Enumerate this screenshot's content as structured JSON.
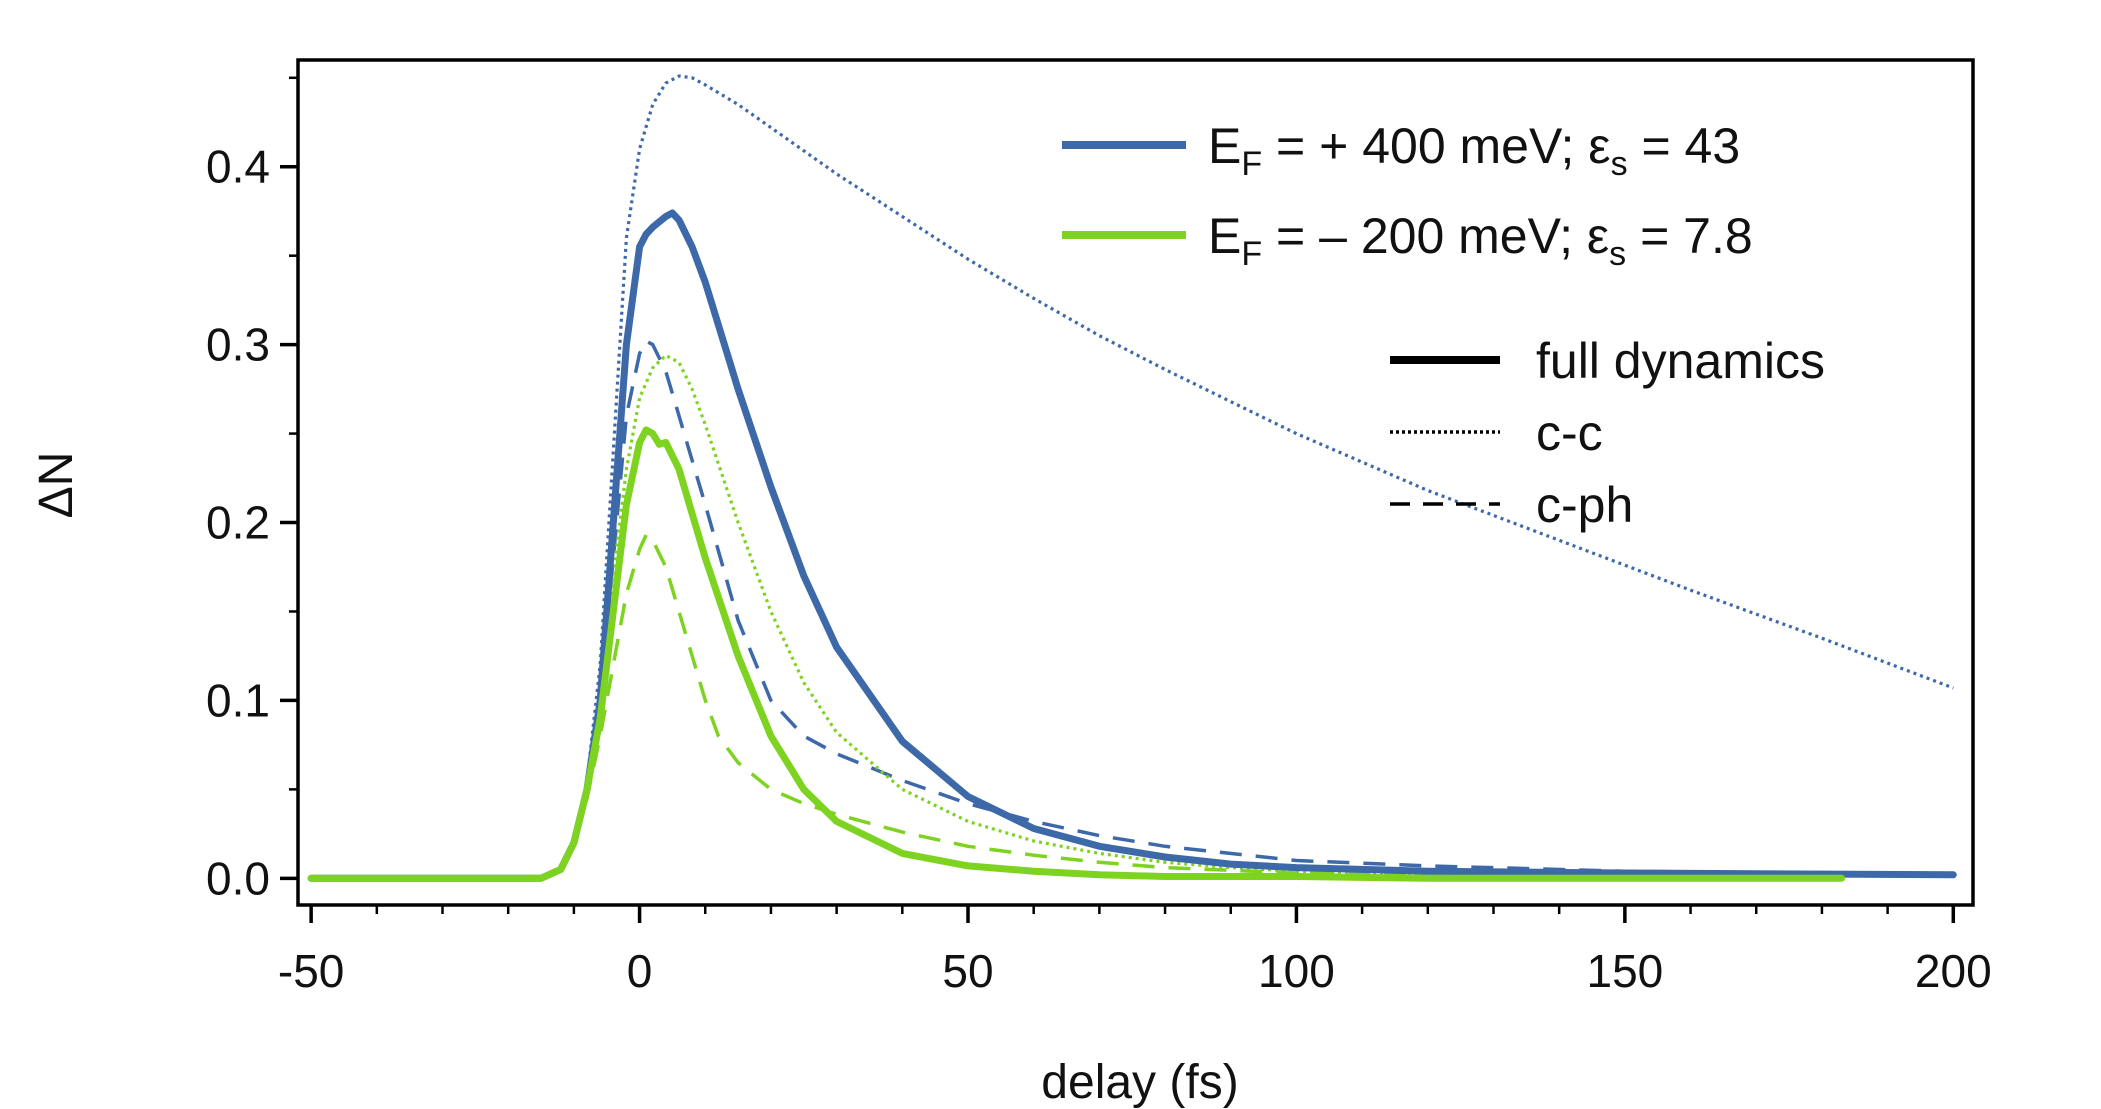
{
  "chart_data": {
    "type": "line",
    "title": "",
    "xlabel": "delay (fs)",
    "ylabel": "ΔN",
    "xlim": [
      -52,
      203
    ],
    "ylim": [
      -0.015,
      0.46
    ],
    "xticks": [
      -50,
      0,
      50,
      100,
      150,
      200
    ],
    "xtick_labels": [
      "-50",
      "0",
      "50",
      "100",
      "150",
      "200"
    ],
    "yticks": [
      0.0,
      0.1,
      0.2,
      0.3,
      0.4
    ],
    "ytick_labels": [
      "0.0",
      "0.1",
      "0.2",
      "0.3",
      "0.4"
    ],
    "grid": false,
    "colors": {
      "blue": "#3d69a9",
      "green": "#7ed321",
      "black": "#000000"
    },
    "legend_case": {
      "position": "top-right",
      "entries": [
        {
          "color_key": "blue",
          "prefix": "E",
          "sub1": "F",
          "middle": " = + 400 meV; ε",
          "sub2": "s",
          "suffix": " = 43"
        },
        {
          "color_key": "green",
          "prefix": "E",
          "sub1": "F",
          "middle": " = – 200 meV; ε",
          "sub2": "s",
          "suffix": " = 7.8"
        }
      ]
    },
    "legend_style": {
      "entries": [
        {
          "label": "full dynamics",
          "style": "solid"
        },
        {
          "label": "c-c",
          "style": "dotted"
        },
        {
          "label": "c-ph",
          "style": "dashed"
        }
      ]
    },
    "series": [
      {
        "name": "E_F = +400 meV full dynamics",
        "color_key": "blue",
        "style": "solid",
        "x": [
          -50,
          -15,
          -12,
          -10,
          -8,
          -6,
          -4,
          -2,
          0,
          1,
          2,
          4,
          5,
          6,
          8,
          10,
          15,
          20,
          25,
          30,
          40,
          50,
          60,
          70,
          80,
          90,
          100,
          120,
          150,
          200
        ],
        "y": [
          0,
          0,
          0.005,
          0.02,
          0.05,
          0.1,
          0.2,
          0.3,
          0.355,
          0.362,
          0.366,
          0.372,
          0.374,
          0.37,
          0.355,
          0.335,
          0.275,
          0.22,
          0.17,
          0.13,
          0.077,
          0.046,
          0.028,
          0.018,
          0.012,
          0.008,
          0.006,
          0.004,
          0.003,
          0.002
        ]
      },
      {
        "name": "E_F = +400 meV c-c",
        "color_key": "blue",
        "style": "dotted",
        "x": [
          -50,
          -15,
          -12,
          -10,
          -8,
          -6,
          -4,
          -2,
          0,
          2,
          4,
          6,
          8,
          10,
          15,
          20,
          30,
          40,
          50,
          60,
          70,
          80,
          90,
          100,
          120,
          140,
          160,
          180,
          200
        ],
        "y": [
          0,
          0,
          0.005,
          0.02,
          0.055,
          0.12,
          0.24,
          0.36,
          0.41,
          0.435,
          0.447,
          0.451,
          0.45,
          0.446,
          0.435,
          0.422,
          0.396,
          0.372,
          0.348,
          0.326,
          0.305,
          0.286,
          0.268,
          0.25,
          0.218,
          0.19,
          0.162,
          0.135,
          0.107
        ]
      },
      {
        "name": "E_F = +400 meV c-ph",
        "color_key": "blue",
        "style": "dashed",
        "x": [
          -50,
          -15,
          -12,
          -10,
          -8,
          -6,
          -4,
          -2,
          0,
          1,
          2,
          4,
          6,
          8,
          10,
          15,
          20,
          25,
          30,
          40,
          50,
          60,
          70,
          80,
          100,
          120,
          150,
          200
        ],
        "y": [
          0,
          0,
          0.005,
          0.02,
          0.05,
          0.1,
          0.18,
          0.26,
          0.295,
          0.302,
          0.3,
          0.285,
          0.26,
          0.235,
          0.21,
          0.145,
          0.1,
          0.08,
          0.07,
          0.055,
          0.042,
          0.032,
          0.024,
          0.018,
          0.01,
          0.007,
          0.004,
          0.002
        ]
      },
      {
        "name": "E_F = -200 meV full dynamics",
        "color_key": "green",
        "style": "solid",
        "x": [
          -50,
          -15,
          -12,
          -10,
          -8,
          -6,
          -4,
          -2,
          0,
          1,
          2,
          3,
          4,
          6,
          8,
          10,
          15,
          20,
          25,
          30,
          40,
          50,
          60,
          70,
          80,
          100,
          120,
          150,
          183
        ],
        "y": [
          0,
          0,
          0.005,
          0.02,
          0.05,
          0.09,
          0.15,
          0.21,
          0.245,
          0.252,
          0.25,
          0.244,
          0.245,
          0.23,
          0.205,
          0.18,
          0.125,
          0.08,
          0.05,
          0.032,
          0.014,
          0.007,
          0.004,
          0.002,
          0.001,
          0.001,
          0,
          0,
          0
        ]
      },
      {
        "name": "E_F = -200 meV c-c",
        "color_key": "green",
        "style": "dotted",
        "x": [
          -50,
          -15,
          -12,
          -10,
          -8,
          -6,
          -4,
          -2,
          0,
          2,
          4,
          6,
          8,
          10,
          15,
          20,
          25,
          30,
          40,
          50,
          60,
          70,
          80,
          90,
          100,
          120,
          150,
          183
        ],
        "y": [
          0,
          0,
          0.005,
          0.02,
          0.05,
          0.1,
          0.17,
          0.23,
          0.27,
          0.287,
          0.294,
          0.29,
          0.275,
          0.255,
          0.2,
          0.15,
          0.11,
          0.082,
          0.05,
          0.032,
          0.021,
          0.014,
          0.009,
          0.006,
          0.004,
          0.002,
          0.001,
          0
        ]
      },
      {
        "name": "E_F = -200 meV c-ph",
        "color_key": "green",
        "style": "dashed",
        "x": [
          -50,
          -15,
          -12,
          -10,
          -8,
          -6,
          -4,
          -2,
          0,
          1,
          2,
          4,
          6,
          8,
          10,
          12,
          15,
          20,
          25,
          30,
          40,
          50,
          60,
          70,
          80,
          100,
          120,
          150,
          183
        ],
        "y": [
          0,
          0,
          0.005,
          0.02,
          0.045,
          0.08,
          0.12,
          0.16,
          0.185,
          0.193,
          0.19,
          0.175,
          0.15,
          0.125,
          0.1,
          0.08,
          0.065,
          0.05,
          0.042,
          0.036,
          0.026,
          0.018,
          0.013,
          0.009,
          0.006,
          0.003,
          0.002,
          0.001,
          0
        ]
      }
    ]
  }
}
